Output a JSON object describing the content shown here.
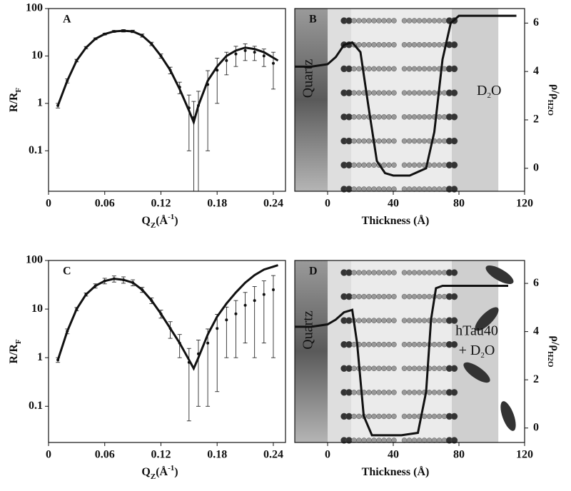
{
  "chart_data": [
    {
      "type": "errorbar",
      "panel_label": "A",
      "log_y": true,
      "color": "#111111",
      "x_label": [
        "Q",
        "Z",
        "(Å",
        "-1",
        ")"
      ],
      "y_label": [
        "R/R",
        "F"
      ],
      "xlim": [
        0,
        0.253
      ],
      "ylim": [
        0.014,
        100
      ],
      "xticks": [
        0,
        0.06,
        0.12,
        0.18,
        0.24
      ],
      "yticks": [
        0.1,
        1,
        10,
        100
      ],
      "x": [
        0.01,
        0.02,
        0.03,
        0.04,
        0.05,
        0.06,
        0.07,
        0.08,
        0.09,
        0.1,
        0.11,
        0.12,
        0.13,
        0.14,
        0.15,
        0.155,
        0.16,
        0.17,
        0.18,
        0.19,
        0.2,
        0.21,
        0.22,
        0.23,
        0.24
      ],
      "values": [
        0.9,
        3,
        8,
        15,
        23,
        29,
        33,
        34,
        33,
        27,
        18,
        10,
        5,
        2.2,
        0.8,
        0.5,
        0.9,
        2.5,
        5,
        8,
        11,
        13,
        12,
        10,
        7
      ],
      "errors": [
        0.1,
        0.3,
        0.5,
        0.8,
        1,
        1.2,
        1.5,
        2,
        2,
        2,
        1.5,
        1,
        0.8,
        0.6,
        0.7,
        0.6,
        0.9,
        2.4,
        4,
        4,
        5,
        5,
        4,
        4,
        5
      ],
      "fit": {
        "x": [
          0.01,
          0.02,
          0.03,
          0.04,
          0.05,
          0.06,
          0.07,
          0.08,
          0.09,
          0.1,
          0.11,
          0.12,
          0.13,
          0.14,
          0.15,
          0.155,
          0.16,
          0.17,
          0.18,
          0.19,
          0.2,
          0.21,
          0.22,
          0.23,
          0.245
        ],
        "values": [
          0.9,
          3,
          8,
          15,
          23,
          29,
          33,
          34,
          33,
          27,
          18,
          10,
          5,
          2,
          0.7,
          0.4,
          0.9,
          3,
          6,
          10,
          13,
          15,
          14,
          12,
          8
        ]
      }
    },
    {
      "type": "line",
      "panel_label": "B",
      "color": "#111111",
      "x_label": [
        "Thickness (Å)"
      ],
      "y_label": [
        "ρ/ρ",
        "H2O"
      ],
      "annotations": [
        [
          "Quartz"
        ],
        [
          "D",
          "2",
          "O"
        ]
      ],
      "xlim": [
        -20,
        120
      ],
      "ylim": [
        -0.95,
        6.6
      ],
      "xticks": [
        0,
        40,
        80,
        120
      ],
      "yticks": [
        0,
        2,
        4,
        6
      ],
      "x": [
        -20,
        -10,
        0,
        5,
        10,
        15,
        20,
        25,
        30,
        35,
        40,
        50,
        60,
        65,
        70,
        75,
        80,
        90,
        100,
        115
      ],
      "values": [
        4.2,
        4.2,
        4.3,
        4.6,
        5.1,
        5.2,
        4.8,
        2.5,
        0.3,
        -0.2,
        -0.3,
        -0.3,
        0,
        1.5,
        4.5,
        6,
        6.3,
        6.3,
        6.3,
        6.3
      ]
    },
    {
      "type": "errorbar",
      "panel_label": "C",
      "log_y": true,
      "color": "#111111",
      "x_label": [
        "Q",
        "Z",
        "(Å",
        "-1",
        ")"
      ],
      "y_label": [
        "R/R",
        "F"
      ],
      "xlim": [
        0,
        0.253
      ],
      "ylim": [
        0.018,
        100
      ],
      "xticks": [
        0,
        0.06,
        0.12,
        0.18,
        0.24
      ],
      "yticks": [
        0.1,
        1,
        10,
        100
      ],
      "x": [
        0.01,
        0.02,
        0.03,
        0.04,
        0.05,
        0.06,
        0.07,
        0.08,
        0.09,
        0.1,
        0.11,
        0.12,
        0.13,
        0.14,
        0.15,
        0.16,
        0.17,
        0.18,
        0.19,
        0.2,
        0.21,
        0.22,
        0.23,
        0.24
      ],
      "values": [
        0.9,
        3.5,
        10,
        20,
        30,
        38,
        42,
        40,
        35,
        25,
        15,
        8,
        4,
        2,
        0.8,
        1.2,
        2,
        4,
        6,
        8,
        12,
        15,
        20,
        25
      ],
      "errors": [
        0.1,
        0.4,
        0.8,
        1.5,
        3,
        5,
        6,
        6,
        5,
        3,
        2,
        1.5,
        1.5,
        1,
        0.75,
        1.1,
        1.9,
        3.8,
        5,
        7,
        10,
        14,
        18,
        24
      ],
      "fit": {
        "x": [
          0.01,
          0.02,
          0.03,
          0.04,
          0.05,
          0.06,
          0.07,
          0.08,
          0.09,
          0.1,
          0.11,
          0.12,
          0.13,
          0.14,
          0.15,
          0.155,
          0.16,
          0.17,
          0.18,
          0.19,
          0.2,
          0.21,
          0.22,
          0.23,
          0.245
        ],
        "values": [
          0.9,
          3.5,
          10,
          20,
          30,
          38,
          42,
          40,
          35,
          25,
          15,
          8,
          4,
          2,
          0.9,
          0.6,
          1,
          3,
          7,
          13,
          22,
          35,
          50,
          65,
          80
        ]
      }
    },
    {
      "type": "line",
      "panel_label": "D",
      "color": "#111111",
      "x_label": [
        "Thickness (Å)"
      ],
      "y_label": [
        "ρ/ρ",
        "H2O"
      ],
      "annotations": [
        [
          "Quartz"
        ],
        [
          "hTau40"
        ],
        [
          "+ D",
          "2",
          "O"
        ]
      ],
      "xlim": [
        -20,
        120
      ],
      "ylim": [
        -0.6,
        6.95
      ],
      "xticks": [
        0,
        40,
        80,
        120
      ],
      "yticks": [
        0,
        2,
        4,
        6
      ],
      "x": [
        -20,
        -10,
        0,
        5,
        10,
        15,
        18,
        22,
        27,
        35,
        45,
        55,
        60,
        63,
        66,
        70,
        90,
        110
      ],
      "values": [
        4.2,
        4.2,
        4.3,
        4.5,
        4.8,
        4.9,
        3.5,
        0.5,
        -0.3,
        -0.3,
        -0.3,
        -0.2,
        1.5,
        4.5,
        5.8,
        5.9,
        5.9,
        5.9
      ]
    }
  ]
}
